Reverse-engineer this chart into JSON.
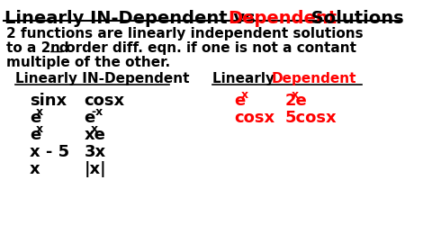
{
  "bg_color": "#ffffff",
  "title_black1": "Linearly IN-Dependent vs ",
  "title_red": "Dependent",
  "title_black2": " Solutions",
  "body_line1": "2 functions are linearly independent solutions",
  "body_line2a": "to a 2",
  "body_line2b": "nd",
  "body_line2c": " order diff. eqn. if one is not a contant",
  "body_line3": "multiple of the other.",
  "col1_header": "Linearly IN-Dependent",
  "col2_header_black": "Linearly ",
  "col2_header_red": "Dependent",
  "fontsize_title": 14,
  "fontsize_body": 11,
  "fontsize_header": 11,
  "fontsize_data": 13,
  "fontsize_sup": 9
}
